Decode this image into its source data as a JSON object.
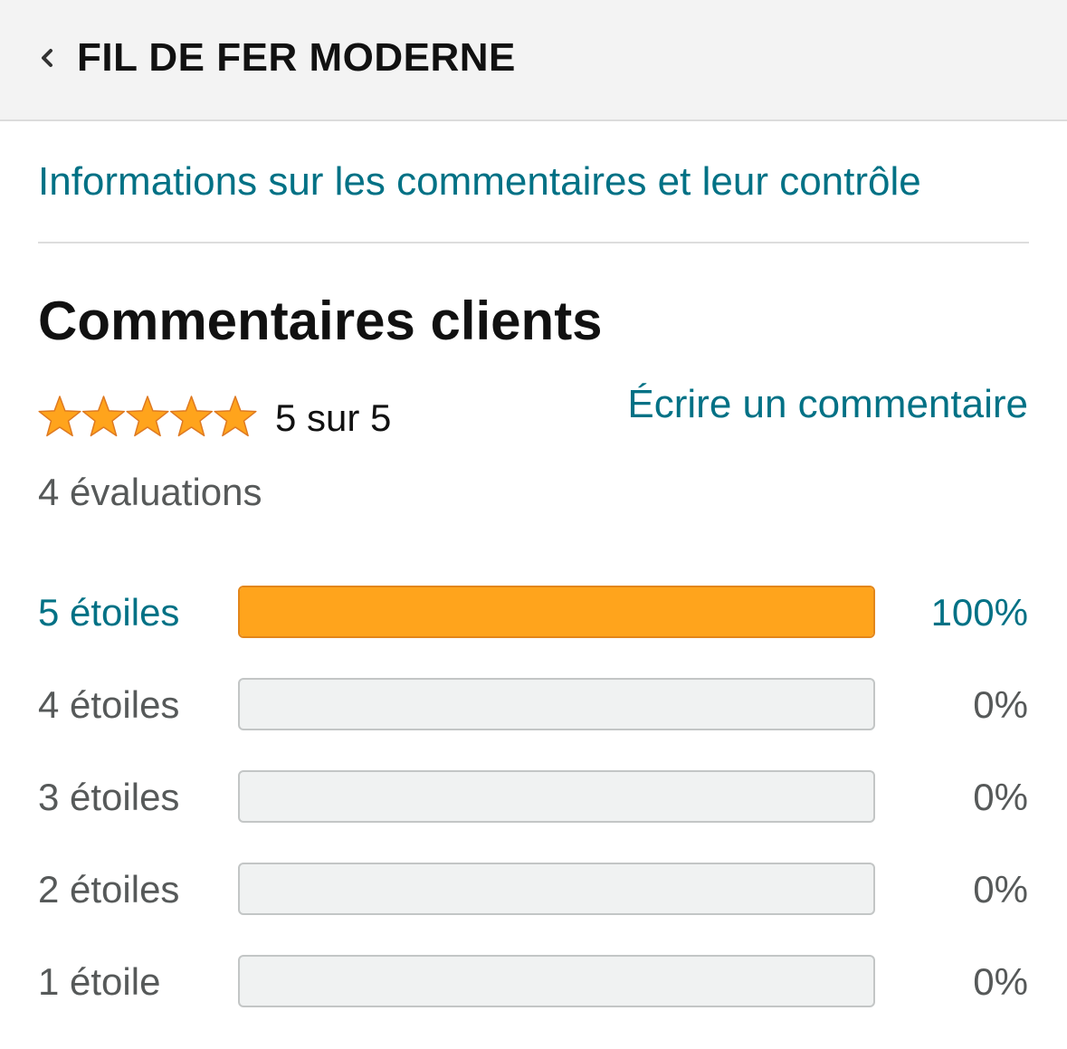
{
  "header": {
    "title": "FIL DE FER MODERNE",
    "back_icon": "chevron-left-icon"
  },
  "info_link": "Informations sur les commentaires et leur contrôle",
  "reviews": {
    "title": "Commentaires clients",
    "rating_value": 5,
    "rating_text": "5 sur 5",
    "write_review_label": "Écrire un commentaire",
    "count_text": "4 évaluations",
    "star_icon": "star-icon",
    "histogram": [
      {
        "label": "5 étoiles",
        "percent_text": "100%",
        "fraction": 1.0,
        "active": true
      },
      {
        "label": "4 étoiles",
        "percent_text": "0%",
        "fraction": 0.0,
        "active": false
      },
      {
        "label": "3 étoiles",
        "percent_text": "0%",
        "fraction": 0.0,
        "active": false
      },
      {
        "label": "2 étoiles",
        "percent_text": "0%",
        "fraction": 0.0,
        "active": false
      },
      {
        "label": "1 étoile",
        "percent_text": "0%",
        "fraction": 0.0,
        "active": false
      }
    ]
  },
  "colors": {
    "link": "#007185",
    "star": "#ffa41c",
    "bar_fill": "#ffa41c",
    "bar_empty": "#f0f2f2",
    "muted_text": "#565959"
  }
}
